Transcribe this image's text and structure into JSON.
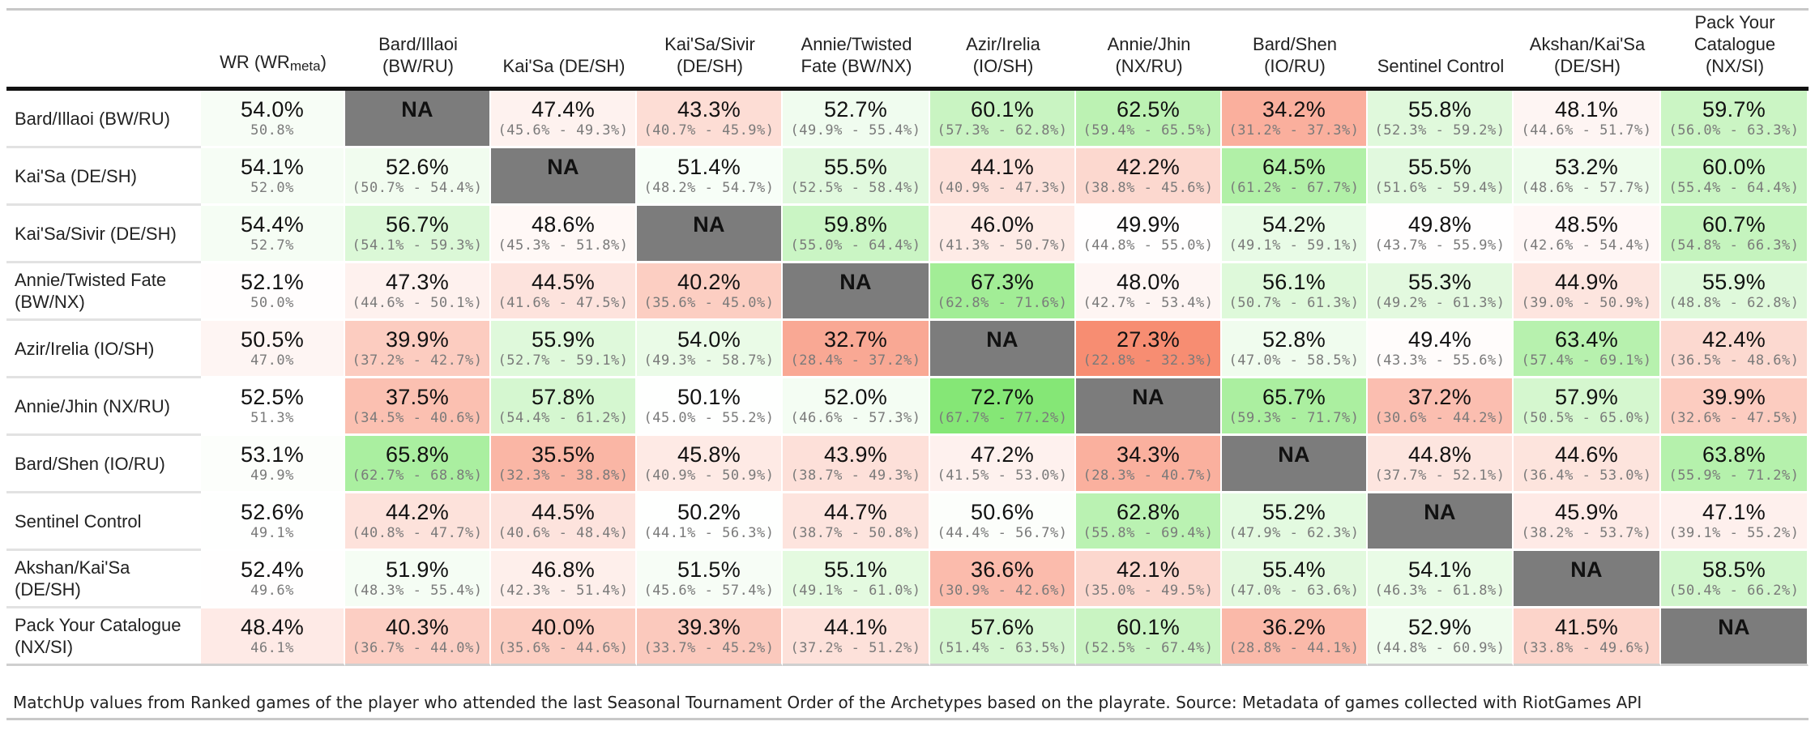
{
  "chart_data": {
    "type": "table",
    "header_first": "WR (WR",
    "header_first_sub": "meta",
    "header_first_end": ")",
    "columns": [
      "Bard/Illaoi (BW/RU)",
      "Kai'Sa (DE/SH)",
      "Kai'Sa/Sivir (DE/SH)",
      "Annie/Twisted Fate (BW/NX)",
      "Azir/Irelia (IO/SH)",
      "Annie/Jhin (NX/RU)",
      "Bard/Shen (IO/RU)",
      "Sentinel Control",
      "Akshan/Kai'Sa (DE/SH)",
      "Pack Your Catalogue (NX/SI)"
    ],
    "rows": [
      {
        "label": "Bard/Illaoi (BW/RU)",
        "wr": "54.0%",
        "wr_meta": "50.8%",
        "cells": [
          [
            "NA",
            ""
          ],
          [
            "47.4%",
            "(45.6% - 49.3%)"
          ],
          [
            "43.3%",
            "(40.7% - 45.9%)"
          ],
          [
            "52.7%",
            "(49.9% - 55.4%)"
          ],
          [
            "60.1%",
            "(57.3% - 62.8%)"
          ],
          [
            "62.5%",
            "(59.4% - 65.5%)"
          ],
          [
            "34.2%",
            "(31.2% - 37.3%)"
          ],
          [
            "55.8%",
            "(52.3% - 59.2%)"
          ],
          [
            "48.1%",
            "(44.6% - 51.7%)"
          ],
          [
            "59.7%",
            "(56.0% - 63.3%)"
          ]
        ]
      },
      {
        "label": "Kai'Sa (DE/SH)",
        "wr": "54.1%",
        "wr_meta": "52.0%",
        "cells": [
          [
            "52.6%",
            "(50.7% - 54.4%)"
          ],
          [
            "NA",
            ""
          ],
          [
            "51.4%",
            "(48.2% - 54.7%)"
          ],
          [
            "55.5%",
            "(52.5% - 58.4%)"
          ],
          [
            "44.1%",
            "(40.9% - 47.3%)"
          ],
          [
            "42.2%",
            "(38.8% - 45.6%)"
          ],
          [
            "64.5%",
            "(61.2% - 67.7%)"
          ],
          [
            "55.5%",
            "(51.6% - 59.4%)"
          ],
          [
            "53.2%",
            "(48.6% - 57.7%)"
          ],
          [
            "60.0%",
            "(55.4% - 64.4%)"
          ]
        ]
      },
      {
        "label": "Kai'Sa/Sivir (DE/SH)",
        "wr": "54.4%",
        "wr_meta": "52.7%",
        "cells": [
          [
            "56.7%",
            "(54.1% - 59.3%)"
          ],
          [
            "48.6%",
            "(45.3% - 51.8%)"
          ],
          [
            "NA",
            ""
          ],
          [
            "59.8%",
            "(55.0% - 64.4%)"
          ],
          [
            "46.0%",
            "(41.3% - 50.7%)"
          ],
          [
            "49.9%",
            "(44.8% - 55.0%)"
          ],
          [
            "54.2%",
            "(49.1% - 59.1%)"
          ],
          [
            "49.8%",
            "(43.7% - 55.9%)"
          ],
          [
            "48.5%",
            "(42.6% - 54.4%)"
          ],
          [
            "60.7%",
            "(54.8% - 66.3%)"
          ]
        ]
      },
      {
        "label": "Annie/Twisted Fate (BW/NX)",
        "wr": "52.1%",
        "wr_meta": "50.0%",
        "cells": [
          [
            "47.3%",
            "(44.6% - 50.1%)"
          ],
          [
            "44.5%",
            "(41.6% - 47.5%)"
          ],
          [
            "40.2%",
            "(35.6% - 45.0%)"
          ],
          [
            "NA",
            ""
          ],
          [
            "67.3%",
            "(62.8% - 71.6%)"
          ],
          [
            "48.0%",
            "(42.7% - 53.4%)"
          ],
          [
            "56.1%",
            "(50.7% - 61.3%)"
          ],
          [
            "55.3%",
            "(49.2% - 61.3%)"
          ],
          [
            "44.9%",
            "(39.0% - 50.9%)"
          ],
          [
            "55.9%",
            "(48.8% - 62.8%)"
          ]
        ]
      },
      {
        "label": "Azir/Irelia (IO/SH)",
        "wr": "50.5%",
        "wr_meta": "47.0%",
        "cells": [
          [
            "39.9%",
            "(37.2% - 42.7%)"
          ],
          [
            "55.9%",
            "(52.7% - 59.1%)"
          ],
          [
            "54.0%",
            "(49.3% - 58.7%)"
          ],
          [
            "32.7%",
            "(28.4% - 37.2%)"
          ],
          [
            "NA",
            ""
          ],
          [
            "27.3%",
            "(22.8% - 32.3%)"
          ],
          [
            "52.8%",
            "(47.0% - 58.5%)"
          ],
          [
            "49.4%",
            "(43.3% - 55.6%)"
          ],
          [
            "63.4%",
            "(57.4% - 69.1%)"
          ],
          [
            "42.4%",
            "(36.5% - 48.6%)"
          ]
        ]
      },
      {
        "label": "Annie/Jhin (NX/RU)",
        "wr": "52.5%",
        "wr_meta": "51.3%",
        "cells": [
          [
            "37.5%",
            "(34.5% - 40.6%)"
          ],
          [
            "57.8%",
            "(54.4% - 61.2%)"
          ],
          [
            "50.1%",
            "(45.0% - 55.2%)"
          ],
          [
            "52.0%",
            "(46.6% - 57.3%)"
          ],
          [
            "72.7%",
            "(67.7% - 77.2%)"
          ],
          [
            "NA",
            ""
          ],
          [
            "65.7%",
            "(59.3% - 71.7%)"
          ],
          [
            "37.2%",
            "(30.6% - 44.2%)"
          ],
          [
            "57.9%",
            "(50.5% - 65.0%)"
          ],
          [
            "39.9%",
            "(32.6% - 47.5%)"
          ]
        ]
      },
      {
        "label": "Bard/Shen (IO/RU)",
        "wr": "53.1%",
        "wr_meta": "49.9%",
        "cells": [
          [
            "65.8%",
            "(62.7% - 68.8%)"
          ],
          [
            "35.5%",
            "(32.3% - 38.8%)"
          ],
          [
            "45.8%",
            "(40.9% - 50.9%)"
          ],
          [
            "43.9%",
            "(38.7% - 49.3%)"
          ],
          [
            "47.2%",
            "(41.5% - 53.0%)"
          ],
          [
            "34.3%",
            "(28.3% - 40.7%)"
          ],
          [
            "NA",
            ""
          ],
          [
            "44.8%",
            "(37.7% - 52.1%)"
          ],
          [
            "44.6%",
            "(36.4% - 53.0%)"
          ],
          [
            "63.8%",
            "(55.9% - 71.2%)"
          ]
        ]
      },
      {
        "label": "Sentinel Control",
        "wr": "52.6%",
        "wr_meta": "49.1%",
        "cells": [
          [
            "44.2%",
            "(40.8% - 47.7%)"
          ],
          [
            "44.5%",
            "(40.6% - 48.4%)"
          ],
          [
            "50.2%",
            "(44.1% - 56.3%)"
          ],
          [
            "44.7%",
            "(38.7% - 50.8%)"
          ],
          [
            "50.6%",
            "(44.4% - 56.7%)"
          ],
          [
            "62.8%",
            "(55.8% - 69.4%)"
          ],
          [
            "55.2%",
            "(47.9% - 62.3%)"
          ],
          [
            "NA",
            ""
          ],
          [
            "45.9%",
            "(38.2% - 53.7%)"
          ],
          [
            "47.1%",
            "(39.1% - 55.2%)"
          ]
        ]
      },
      {
        "label": "Akshan/Kai'Sa (DE/SH)",
        "wr": "52.4%",
        "wr_meta": "49.6%",
        "cells": [
          [
            "51.9%",
            "(48.3% - 55.4%)"
          ],
          [
            "46.8%",
            "(42.3% - 51.4%)"
          ],
          [
            "51.5%",
            "(45.6% - 57.4%)"
          ],
          [
            "55.1%",
            "(49.1% - 61.0%)"
          ],
          [
            "36.6%",
            "(30.9% - 42.6%)"
          ],
          [
            "42.1%",
            "(35.0% - 49.5%)"
          ],
          [
            "55.4%",
            "(47.0% - 63.6%)"
          ],
          [
            "54.1%",
            "(46.3% - 61.8%)"
          ],
          [
            "NA",
            ""
          ],
          [
            "58.5%",
            "(50.4% - 66.2%)"
          ]
        ]
      },
      {
        "label": "Pack Your Catalogue (NX/SI)",
        "wr": "48.4%",
        "wr_meta": "46.1%",
        "cells": [
          [
            "40.3%",
            "(36.7% - 44.0%)"
          ],
          [
            "40.0%",
            "(35.6% - 44.6%)"
          ],
          [
            "39.3%",
            "(33.7% - 45.2%)"
          ],
          [
            "44.1%",
            "(37.2% - 51.2%)"
          ],
          [
            "57.6%",
            "(51.4% - 63.5%)"
          ],
          [
            "60.1%",
            "(52.5% - 67.4%)"
          ],
          [
            "36.2%",
            "(28.8% - 44.1%)"
          ],
          [
            "52.9%",
            "(44.8% - 60.9%)"
          ],
          [
            "41.5%",
            "(33.8% - 49.6%)"
          ],
          [
            "NA",
            ""
          ]
        ]
      }
    ],
    "colors": {
      "na": "#7c7c7c",
      "high": "#7ee66e",
      "low": "#f7866a",
      "neutral": "#ffffff"
    },
    "caption": "MatchUp values from Ranked games of the player who attended the last Seasonal Tournament Order of the Archetypes based on the playrate. Source: Metadata of games collected with RiotGames API"
  }
}
